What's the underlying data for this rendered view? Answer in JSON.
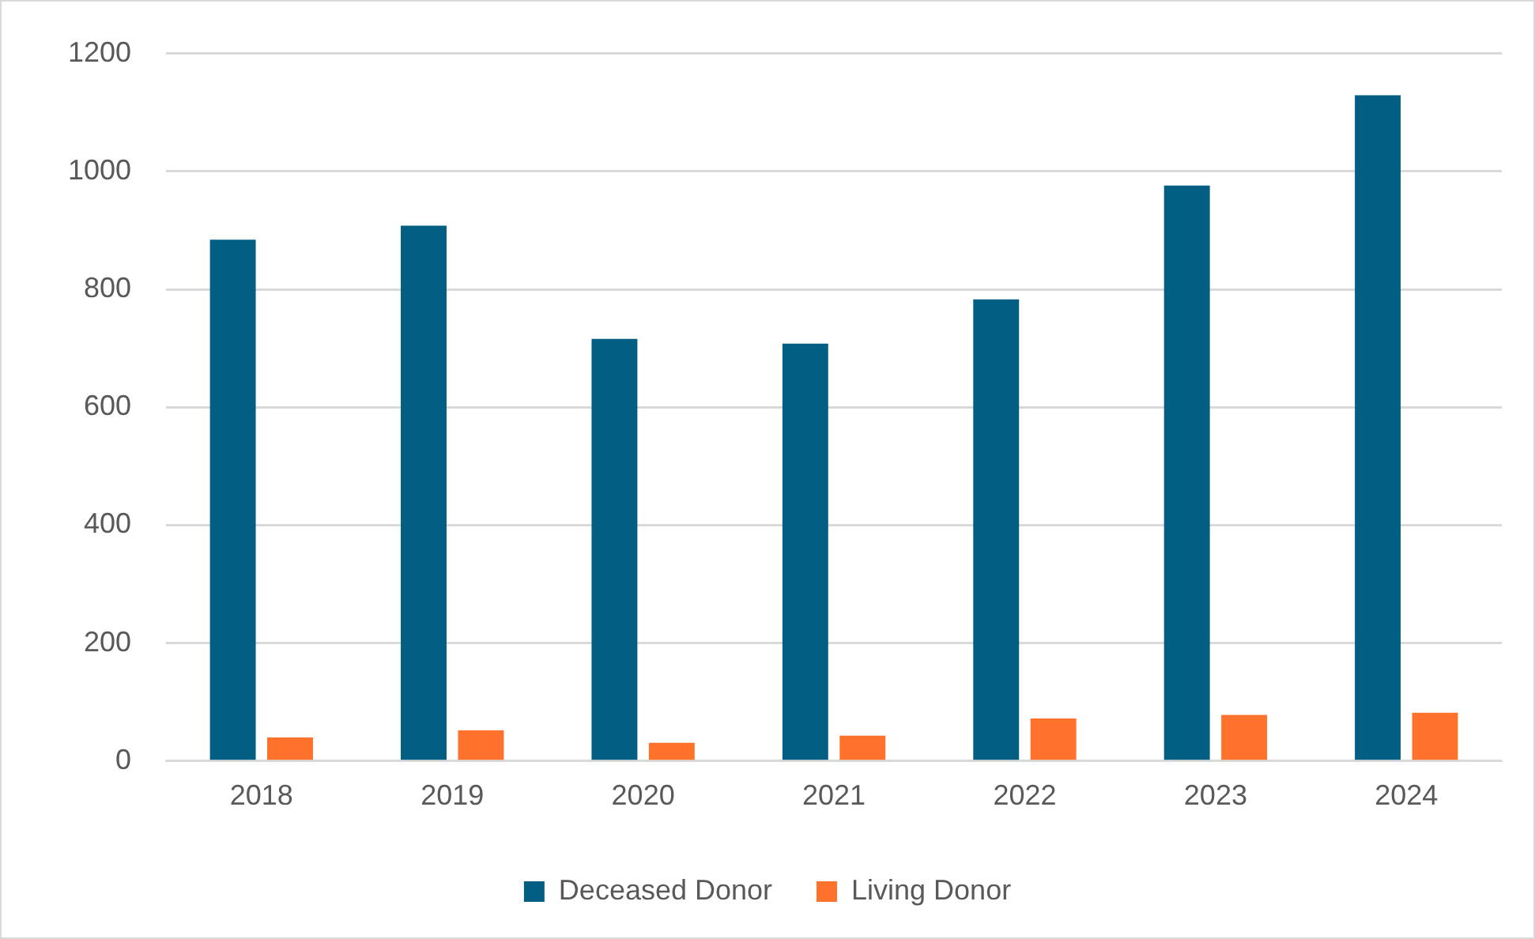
{
  "chart_data": {
    "type": "bar",
    "categories": [
      "2018",
      "2019",
      "2020",
      "2021",
      "2022",
      "2023",
      "2024"
    ],
    "series": [
      {
        "name": "Deceased Donor",
        "color": "#025f83",
        "values": [
          884,
          908,
          716,
          708,
          783,
          976,
          1129
        ]
      },
      {
        "name": "Living Donor",
        "color": "#ff722b",
        "values": [
          40,
          52,
          31,
          43,
          72,
          78,
          82
        ]
      }
    ],
    "ylim": [
      0,
      1200
    ],
    "yticks": [
      0,
      200,
      400,
      600,
      800,
      1000,
      1200
    ],
    "grid": "y",
    "legend": "bottom"
  }
}
